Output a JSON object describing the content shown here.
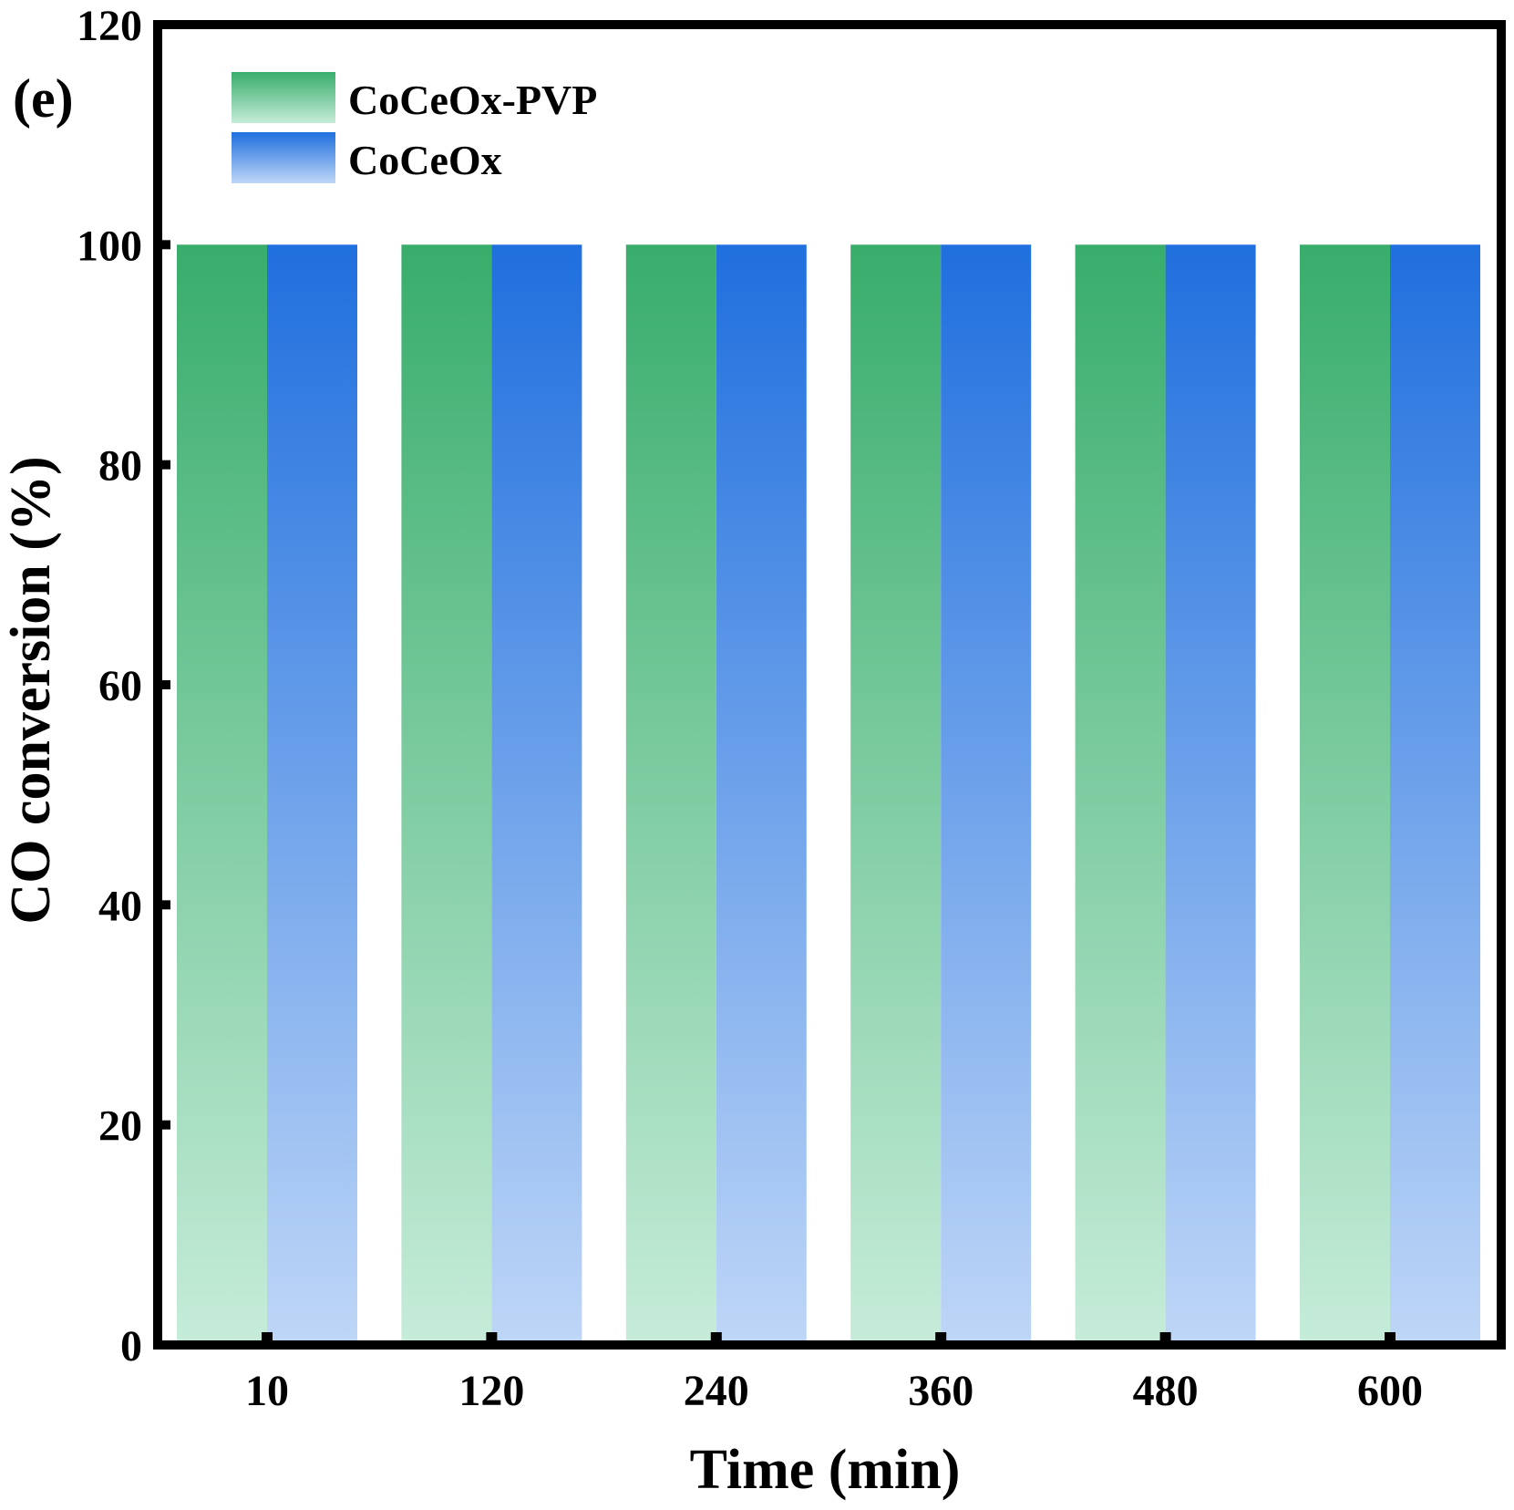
{
  "panel_label": "(e)",
  "chart_data": {
    "type": "bar",
    "title": "",
    "xlabel": "Time (min)",
    "ylabel": "CO conversion (%)",
    "categories": [
      "10",
      "120",
      "240",
      "360",
      "480",
      "600"
    ],
    "ylim": [
      0,
      120
    ],
    "yticks": [
      0,
      20,
      40,
      60,
      80,
      100,
      120
    ],
    "grid": false,
    "legend_position": "top-left",
    "series": [
      {
        "name": "CoCeOx-PVP",
        "values": [
          100,
          100,
          100,
          100,
          100,
          100
        ],
        "color_top": "#38ad6b",
        "color_bottom": "#c6ecd9"
      },
      {
        "name": "CoCeOx",
        "values": [
          100,
          100,
          100,
          100,
          100,
          100
        ],
        "color_top": "#1f6fde",
        "color_bottom": "#bed6f7"
      }
    ]
  }
}
